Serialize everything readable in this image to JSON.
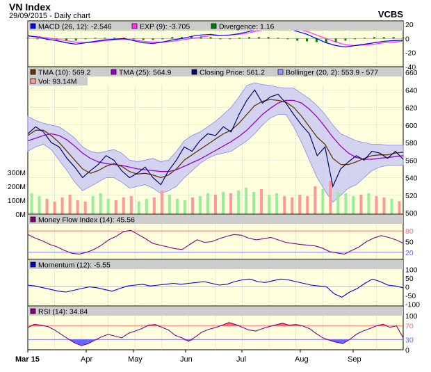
{
  "header": {
    "title": "VN Index",
    "subtitle": "29/09/2015 - Daily chart",
    "brand": "VCBS"
  },
  "colors": {
    "panel_bg": "#ffffdd",
    "legend_bg": "#cccccc",
    "grid": "#d8d8d8",
    "macd": "#0000ff",
    "exp": "#ff33ff",
    "divergence": "#008000",
    "tma10": "#663300",
    "tma25": "#9900cc",
    "close": "#000066",
    "bollinger": "#9999ff",
    "vol_up": "#99ee99",
    "vol_down": "#ff9999",
    "mfi": "#800080",
    "momentum": "#0000cc",
    "rsi": "#800080",
    "overbought": "#ff6666",
    "oversold": "#6666ff"
  },
  "x_axis": {
    "labels": [
      "Mar 15",
      "Apr",
      "May",
      "Jun",
      "Jul",
      "Aug",
      "Sep"
    ]
  },
  "chart_data": [
    {
      "type": "bar",
      "panel": "macd",
      "legend": {
        "macd": "MACD (26, 12): -2.546",
        "exp": "EXP (9): -3.705",
        "divergence": "Divergence: 1.16"
      },
      "y_ticks": [
        "20",
        "0",
        "-20",
        "-40"
      ],
      "ylim": [
        -40,
        25
      ],
      "series": [
        {
          "name": "MACD (26, 12)",
          "values": [
            4,
            2,
            -1,
            -3,
            -6,
            -8,
            -6,
            -4,
            -2,
            -1,
            0,
            -3,
            -6,
            -7,
            -5,
            -2,
            0,
            3,
            5,
            6,
            4,
            5,
            7,
            10,
            13,
            15,
            16,
            14,
            10,
            6,
            0,
            -6,
            -10,
            -12,
            -10,
            -8,
            -6,
            -4,
            -3,
            -2.5
          ]
        },
        {
          "name": "EXP (9)",
          "values": [
            3,
            3,
            1,
            -1,
            -3,
            -5,
            -6,
            -5,
            -3,
            -2,
            -1,
            -2,
            -4,
            -5,
            -5,
            -4,
            -2,
            0,
            2,
            4,
            4,
            5,
            6,
            8,
            11,
            13,
            15,
            15,
            13,
            10,
            5,
            0,
            -5,
            -9,
            -10,
            -9,
            -8,
            -6,
            -5,
            -3.7
          ]
        },
        {
          "name": "Divergence",
          "values": [
            1,
            -1,
            -2,
            -2,
            -3,
            -3,
            0,
            1,
            1,
            1,
            1,
            -1,
            -2,
            -2,
            0,
            2,
            2,
            3,
            3,
            2,
            0,
            0,
            1,
            2,
            2,
            2,
            1,
            -1,
            -3,
            -4,
            -5,
            -6,
            -5,
            -3,
            0,
            1,
            2,
            2,
            2,
            1.16
          ]
        }
      ]
    },
    {
      "type": "line",
      "panel": "price",
      "legend": {
        "tma10": "TMA (10): 569.2",
        "tma25": "TMA (25): 564.9",
        "close": "Closing Price: 561.2",
        "bollinger": "Bollinger (20, 2): 553.9 - 577",
        "vol": "Vol: 93.14M"
      },
      "y_ticks": [
        "660",
        "640",
        "620",
        "600",
        "580",
        "560",
        "540",
        "520",
        "500"
      ],
      "vol_ticks": [
        "300M",
        "200M",
        "100M",
        "0M"
      ],
      "ylim": [
        500,
        660
      ],
      "series": [
        {
          "name": "Closing Price",
          "values": [
            590,
            598,
            592,
            580,
            575,
            562,
            552,
            540,
            548,
            555,
            565,
            560,
            548,
            540,
            545,
            552,
            540,
            532,
            548,
            560,
            575,
            570,
            582,
            590,
            588,
            598,
            592,
            612,
            628,
            640,
            625,
            632,
            635,
            625,
            612,
            600,
            590,
            565,
            575,
            530,
            550,
            558,
            565,
            560,
            570,
            568,
            562,
            570,
            561
          ]
        },
        {
          "name": "TMA (10)",
          "values": [
            588,
            594,
            594,
            588,
            580,
            570,
            560,
            550,
            545,
            548,
            553,
            556,
            553,
            547,
            544,
            545,
            543,
            540,
            543,
            550,
            560,
            566,
            572,
            578,
            584,
            590,
            594,
            602,
            612,
            622,
            627,
            629,
            628,
            626,
            620,
            610,
            598,
            586,
            578,
            562,
            555,
            555,
            558,
            562,
            565,
            566,
            566,
            568,
            569
          ]
        },
        {
          "name": "TMA (25)",
          "values": [
            582,
            585,
            588,
            590,
            588,
            583,
            576,
            568,
            562,
            558,
            556,
            555,
            554,
            552,
            550,
            549,
            548,
            547,
            547,
            549,
            553,
            557,
            561,
            566,
            571,
            576,
            581,
            587,
            594,
            603,
            612,
            619,
            625,
            628,
            628,
            625,
            618,
            609,
            598,
            586,
            576,
            568,
            563,
            561,
            561,
            562,
            563,
            564,
            565
          ]
        },
        {
          "name": "Bollinger upper",
          "values": [
            610,
            605,
            602,
            600,
            598,
            592,
            585,
            575,
            570,
            568,
            570,
            572,
            568,
            560,
            558,
            560,
            562,
            558,
            560,
            570,
            582,
            588,
            592,
            598,
            604,
            612,
            620,
            632,
            645,
            648,
            646,
            645,
            643,
            642,
            642,
            636,
            630,
            622,
            612,
            600,
            590,
            586,
            582,
            580,
            578,
            578,
            577,
            577,
            577
          ]
        },
        {
          "name": "Bollinger lower",
          "values": [
            570,
            575,
            578,
            572,
            560,
            548,
            535,
            525,
            530,
            535,
            540,
            540,
            535,
            528,
            530,
            532,
            528,
            522,
            525,
            530,
            540,
            548,
            556,
            562,
            566,
            568,
            570,
            576,
            582,
            590,
            600,
            608,
            612,
            612,
            598,
            580,
            560,
            540,
            525,
            512,
            520,
            528,
            532,
            540,
            548,
            552,
            554,
            554,
            554
          ]
        },
        {
          "name": "Vol",
          "values": [
            150,
            130,
            110,
            90,
            120,
            140,
            100,
            90,
            130,
            150,
            110,
            100,
            120,
            130,
            90,
            110,
            120,
            170,
            140,
            110,
            100,
            120,
            130,
            150,
            140,
            160,
            150,
            170,
            190,
            160,
            180,
            140,
            150,
            130,
            120,
            140,
            130,
            200,
            180,
            240,
            160,
            150,
            130,
            140,
            150,
            130,
            120,
            110,
            93
          ]
        }
      ]
    },
    {
      "type": "line",
      "panel": "mfi",
      "legend": {
        "mfi": "Money Flow Index (14): 45.56"
      },
      "y_ticks": [
        "80",
        "50",
        "20"
      ],
      "ylim": [
        0,
        100
      ],
      "series": [
        {
          "name": "Money Flow Index (14)",
          "values": [
            70,
            60,
            52,
            42,
            35,
            25,
            17,
            15,
            20,
            28,
            40,
            55,
            65,
            78,
            82,
            70,
            58,
            45,
            40,
            35,
            30,
            28,
            42,
            55,
            48,
            50,
            58,
            65,
            70,
            68,
            60,
            55,
            58,
            62,
            55,
            48,
            45,
            42,
            40,
            38,
            32,
            22,
            18,
            15,
            25,
            35,
            50,
            60,
            67,
            62,
            55,
            45.56
          ]
        }
      ]
    },
    {
      "type": "line",
      "panel": "momentum",
      "legend": {
        "momentum": "Momentum (12): -5.55"
      },
      "y_ticks": [
        "100",
        "50",
        "0",
        "-50",
        "-100"
      ],
      "ylim": [
        -110,
        110
      ],
      "series": [
        {
          "name": "Momentum (12)",
          "values": [
            10,
            5,
            -5,
            -15,
            -25,
            -30,
            -20,
            -10,
            0,
            -5,
            -15,
            -25,
            -10,
            5,
            10,
            15,
            5,
            10,
            15,
            20,
            15,
            20,
            25,
            30,
            20,
            10,
            15,
            30,
            40,
            45,
            30,
            25,
            35,
            45,
            40,
            30,
            20,
            10,
            5,
            0,
            -40,
            -60,
            -30,
            -10,
            20,
            45,
            30,
            10,
            5,
            -5.55
          ]
        }
      ]
    },
    {
      "type": "line",
      "panel": "rsi",
      "legend": {
        "rsi": "RSI (14): 34.84"
      },
      "y_ticks": [
        "100",
        "70",
        "30",
        "0"
      ],
      "ylim": [
        0,
        100
      ],
      "series": [
        {
          "name": "RSI (14)",
          "values": [
            65,
            75,
            72,
            68,
            58,
            45,
            32,
            20,
            12,
            18,
            28,
            38,
            45,
            40,
            35,
            48,
            55,
            62,
            72,
            74,
            66,
            58,
            42,
            35,
            25,
            38,
            52,
            60,
            65,
            72,
            80,
            74,
            66,
            58,
            55,
            62,
            68,
            73,
            78,
            72,
            74,
            70,
            62,
            48,
            35,
            28,
            22,
            18,
            30,
            45,
            55,
            62,
            70,
            75,
            66,
            70,
            34.84
          ]
        }
      ]
    }
  ]
}
